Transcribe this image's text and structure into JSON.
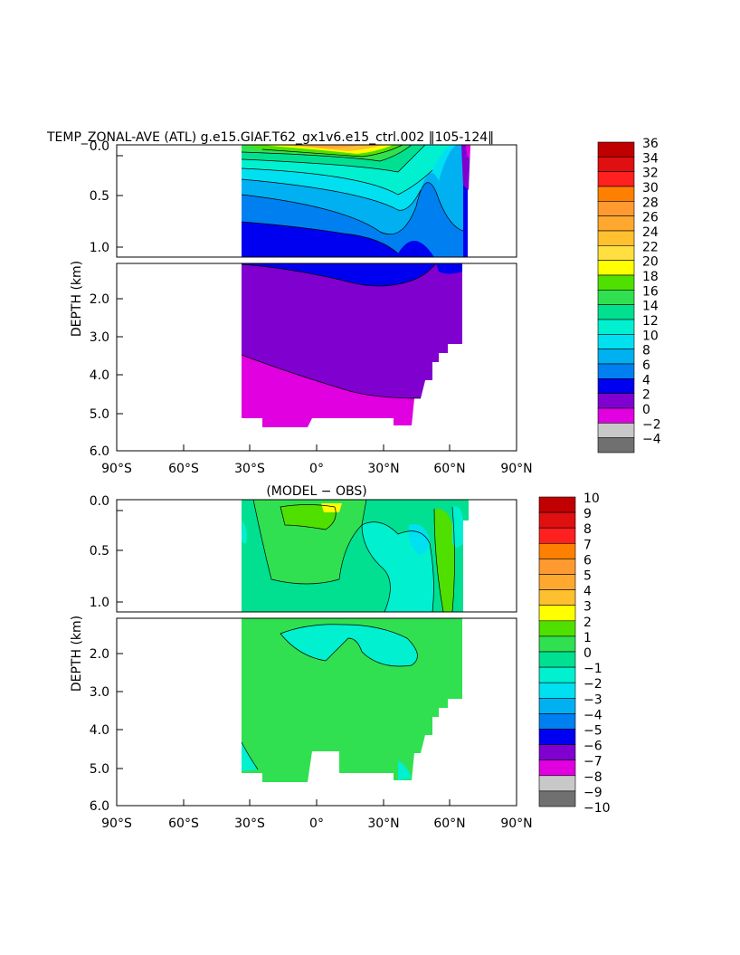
{
  "chart_data": [
    {
      "type": "heatmap",
      "title": "TEMP_ZONAL-AVE (ATL) g.e15.GIAF.T62_gx1v6.e15_ctrl.002 ‖105-124‖",
      "xlabel": "",
      "ylabel": "DEPTH (km)",
      "xlim": [
        -90,
        90
      ],
      "ylim_upper": [
        0.0,
        1.1
      ],
      "ylim_lower": [
        1.1,
        6.0
      ],
      "x_ticks": [
        "90°S",
        "60°S",
        "30°S",
        "0°",
        "30°N",
        "60°N",
        "90°N"
      ],
      "y_ticks_upper": [
        "0.0",
        "0.5",
        "1.0"
      ],
      "y_ticks_lower": [
        "2.0",
        "3.0",
        "4.0",
        "5.0",
        "6.0"
      ],
      "colorbar": {
        "levels": [
          "36",
          "34",
          "32",
          "30",
          "28",
          "26",
          "24",
          "22",
          "20",
          "18",
          "16",
          "14",
          "12",
          "10",
          "8",
          "6",
          "4",
          "2",
          "0",
          "−2",
          "−4"
        ],
        "colors": [
          "#c00000",
          "#e01010",
          "#ff2020",
          "#ff8000",
          "#ff9a30",
          "#ffa830",
          "#ffc030",
          "#ffe040",
          "#ffff00",
          "#50e000",
          "#30e050",
          "#00e090",
          "#00f0d0",
          "#00e0f0",
          "#00b0f0",
          "#0080f0",
          "#0000f0",
          "#8000d0",
          "#e000e0",
          "#c8c8c8",
          "#707070"
        ]
      },
      "field_approx": {
        "lat_range": [
          -34,
          66
        ],
        "depth_bands_at_equator_km": [
          {
            "temp": "24-28",
            "depth": [
              0.0,
              0.05
            ]
          },
          {
            "temp": "18-22",
            "depth": [
              0.05,
              0.15
            ]
          },
          {
            "temp": "10-16",
            "depth": [
              0.15,
              0.5
            ]
          },
          {
            "temp": "6-8",
            "depth": [
              0.5,
              0.8
            ]
          },
          {
            "temp": "4-6",
            "depth": [
              0.8,
              1.6
            ]
          },
          {
            "temp": "2-4",
            "depth": [
              1.6,
              4.2
            ]
          },
          {
            "temp": "0-2",
            "depth": [
              4.2,
              5.4
            ]
          }
        ]
      }
    },
    {
      "type": "heatmap",
      "title": "(MODEL − OBS)",
      "xlabel": "",
      "ylabel": "DEPTH (km)",
      "xlim": [
        -90,
        90
      ],
      "ylim_upper": [
        0.0,
        1.1
      ],
      "ylim_lower": [
        1.1,
        6.0
      ],
      "x_ticks": [
        "90°S",
        "60°S",
        "30°S",
        "0°",
        "30°N",
        "60°N",
        "90°N"
      ],
      "y_ticks_upper": [
        "0.0",
        "0.5",
        "1.0"
      ],
      "y_ticks_lower": [
        "2.0",
        "3.0",
        "4.0",
        "5.0",
        "6.0"
      ],
      "colorbar": {
        "levels": [
          "10",
          "9",
          "8",
          "7",
          "6",
          "5",
          "4",
          "3",
          "2",
          "1",
          "0",
          "−1",
          "−2",
          "−3",
          "−4",
          "−5",
          "−6",
          "−7",
          "−8",
          "−9",
          "−10"
        ],
        "colors": [
          "#c00000",
          "#e01010",
          "#ff2020",
          "#ff8000",
          "#ff9a30",
          "#ffa830",
          "#ffc030",
          "#ffff00",
          "#50e000",
          "#30e050",
          "#00e090",
          "#00f0d0",
          "#00e0f0",
          "#00b0f0",
          "#0080f0",
          "#0000f0",
          "#8000d0",
          "#e000e0",
          "#c8c8c8",
          "#707070"
        ]
      },
      "field_approx": {
        "dominant_range": "0 to 1",
        "regions": [
          {
            "value": "1 to 2",
            "lat": [
              -20,
              10
            ],
            "depth": [
              0.0,
              0.8
            ]
          },
          {
            "value": "-1 to 0",
            "lat": [
              25,
              50
            ],
            "depth": [
              0.1,
              1.1
            ]
          },
          {
            "value": "-2 to -1",
            "lat": [
              42,
              48
            ],
            "depth": [
              0.2,
              0.6
            ]
          },
          {
            "value": "-1 to 0",
            "lat": [
              -10,
              30
            ],
            "depth": [
              1.1,
              1.8
            ]
          },
          {
            "value": "2 to 3",
            "lat": [
              0,
              10
            ],
            "depth": [
              0.0,
              0.05
            ]
          }
        ]
      }
    }
  ]
}
